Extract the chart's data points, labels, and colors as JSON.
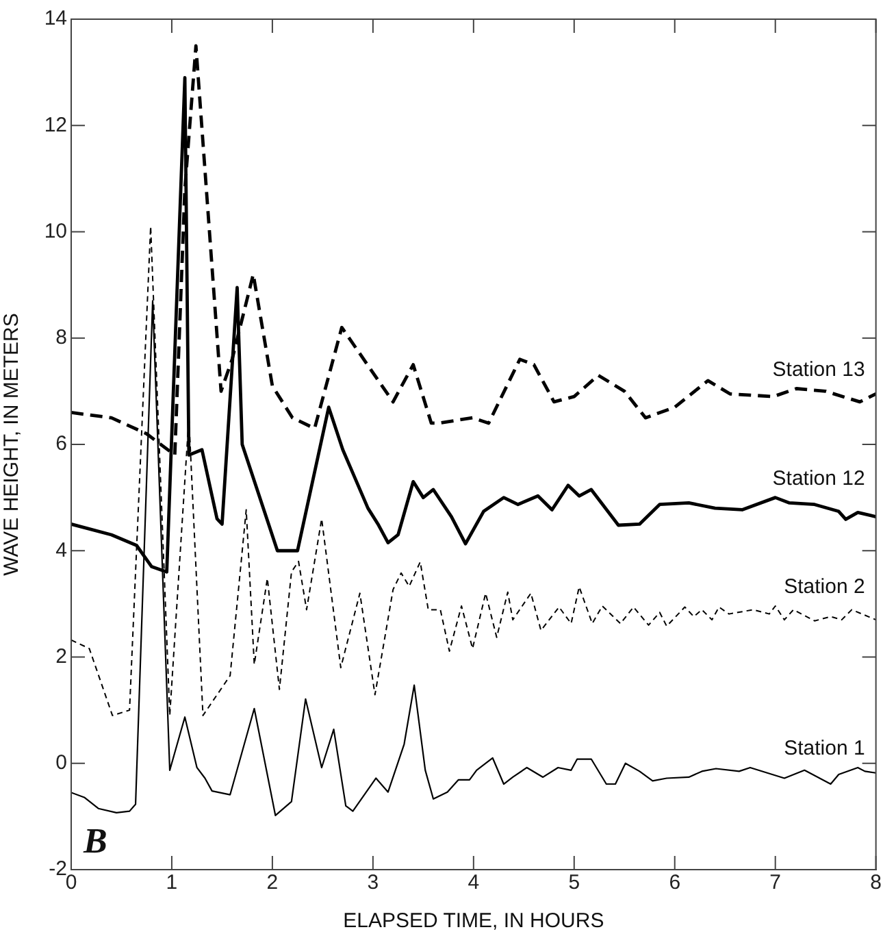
{
  "chart_data": {
    "type": "line",
    "xlabel": "ELAPSED TIME, IN HOURS",
    "ylabel": "WAVE HEIGHT, IN METERS",
    "xlim": [
      0,
      8
    ],
    "xticks": [
      0,
      1,
      2,
      3,
      4,
      5,
      6,
      7,
      8
    ],
    "ylim": [
      -2,
      14
    ],
    "yticks": [
      -2,
      0,
      2,
      4,
      6,
      8,
      10,
      12,
      14
    ],
    "grid": false,
    "legend": false,
    "marker": "none",
    "annotations": [
      "B"
    ],
    "series": [
      {
        "name": "Station 13",
        "color": "#000000",
        "line_style": "dashed",
        "x": [
          0,
          0.4,
          0.75,
          1.03,
          1.13,
          1.24,
          1.49,
          1.6,
          1.81,
          2.0,
          2.2,
          2.42,
          2.69,
          3.2,
          3.4,
          3.58,
          3.65,
          3.99,
          4.15,
          4.46,
          4.6,
          4.8,
          5.0,
          5.24,
          5.5,
          5.71,
          6.0,
          6.33,
          6.55,
          6.98,
          7.21,
          7.5,
          7.84,
          8
        ],
        "values": [
          6.6,
          6.5,
          6.2,
          5.8,
          10.8,
          13.5,
          7.0,
          7.6,
          9.2,
          7.1,
          6.5,
          6.3,
          8.2,
          6.8,
          7.5,
          6.4,
          6.4,
          6.5,
          6.4,
          7.6,
          7.5,
          6.8,
          6.9,
          7.3,
          7.0,
          6.5,
          6.7,
          7.2,
          6.95,
          6.9,
          7.05,
          7.0,
          6.8,
          6.95
        ]
      },
      {
        "name": "Station 12",
        "color": "#000000",
        "line_style": "solid",
        "x": [
          0,
          0.4,
          0.65,
          0.8,
          0.95,
          1.13,
          1.17,
          1.3,
          1.45,
          1.5,
          1.65,
          1.7,
          2.05,
          2.25,
          2.56,
          2.7,
          2.95,
          3.05,
          3.15,
          3.25,
          3.4,
          3.5,
          3.6,
          3.78,
          3.92,
          4.1,
          4.3,
          4.44,
          4.64,
          4.78,
          4.94,
          5.05,
          5.17,
          5.44,
          5.65,
          5.85,
          6.14,
          6.4,
          6.67,
          7.0,
          7.14,
          7.39,
          7.63,
          7.7,
          7.82,
          8
        ],
        "values": [
          4.5,
          4.3,
          4.1,
          3.7,
          3.6,
          12.9,
          5.8,
          5.9,
          4.6,
          4.5,
          8.95,
          6.0,
          4.0,
          4.0,
          6.7,
          5.9,
          4.8,
          4.5,
          4.15,
          4.3,
          5.3,
          5.0,
          5.15,
          4.64,
          4.13,
          4.74,
          5.0,
          4.87,
          5.03,
          4.77,
          5.23,
          5.03,
          5.15,
          4.48,
          4.5,
          4.87,
          4.9,
          4.8,
          4.77,
          5.0,
          4.9,
          4.87,
          4.74,
          4.59,
          4.72,
          4.64
        ]
      },
      {
        "name": "Station 2",
        "color": "#000000",
        "line_style": "dotted",
        "x": [
          0,
          0.18,
          0.41,
          0.58,
          0.79,
          0.98,
          1.17,
          1.31,
          1.58,
          1.74,
          1.82,
          1.95,
          2.07,
          2.19,
          2.26,
          2.34,
          2.49,
          2.68,
          2.87,
          3.02,
          3.2,
          3.28,
          3.36,
          3.47,
          3.55,
          3.67,
          3.76,
          3.88,
          3.99,
          4.12,
          4.23,
          4.34,
          4.39,
          4.57,
          4.67,
          4.85,
          4.97,
          5.05,
          5.18,
          5.28,
          5.46,
          5.59,
          5.74,
          5.85,
          5.92,
          6.1,
          6.19,
          6.27,
          6.37,
          6.44,
          6.54,
          6.78,
          6.94,
          7.0,
          7.09,
          7.18,
          7.39,
          7.55,
          7.66,
          7.76,
          8
        ],
        "values": [
          2.32,
          2.16,
          0.9,
          1.0,
          10.1,
          0.9,
          6.5,
          0.9,
          1.65,
          4.77,
          1.86,
          3.48,
          1.39,
          3.6,
          3.8,
          2.89,
          4.6,
          1.8,
          3.2,
          1.29,
          3.27,
          3.58,
          3.33,
          3.79,
          2.89,
          2.89,
          2.11,
          2.96,
          2.16,
          3.2,
          2.37,
          3.22,
          2.7,
          3.2,
          2.5,
          2.94,
          2.63,
          3.32,
          2.63,
          2.96,
          2.63,
          2.94,
          2.6,
          2.84,
          2.58,
          2.94,
          2.76,
          2.89,
          2.7,
          2.94,
          2.81,
          2.89,
          2.81,
          2.96,
          2.7,
          2.89,
          2.68,
          2.76,
          2.7,
          2.89,
          2.7
        ]
      },
      {
        "name": "Station 1",
        "color": "#000000",
        "line_style": "solid",
        "x": [
          0,
          0.13,
          0.27,
          0.45,
          0.58,
          0.64,
          0.81,
          0.98,
          1.13,
          1.25,
          1.33,
          1.4,
          1.58,
          1.82,
          2.03,
          2.19,
          2.33,
          2.49,
          2.61,
          2.73,
          2.8,
          3.03,
          3.15,
          3.31,
          3.41,
          3.52,
          3.6,
          3.74,
          3.85,
          3.96,
          4.03,
          4.19,
          4.3,
          4.39,
          4.53,
          4.69,
          4.84,
          4.97,
          5.03,
          5.17,
          5.32,
          5.41,
          5.51,
          5.65,
          5.78,
          5.92,
          6.14,
          6.27,
          6.41,
          6.64,
          6.75,
          7.09,
          7.29,
          7.55,
          7.63,
          7.82,
          7.89,
          8
        ],
        "values": [
          -0.55,
          -0.64,
          -0.85,
          -0.93,
          -0.9,
          -0.77,
          8.7,
          -0.13,
          0.87,
          -0.08,
          -0.28,
          -0.52,
          -0.59,
          1.03,
          -0.98,
          -0.72,
          1.21,
          -0.08,
          0.64,
          -0.8,
          -0.9,
          -0.28,
          -0.54,
          0.36,
          1.47,
          -0.13,
          -0.67,
          -0.54,
          -0.31,
          -0.31,
          -0.13,
          0.1,
          -0.39,
          -0.26,
          -0.08,
          -0.26,
          -0.08,
          -0.13,
          0.08,
          0.08,
          -0.39,
          -0.39,
          0,
          -0.15,
          -0.33,
          -0.28,
          -0.26,
          -0.15,
          -0.1,
          -0.15,
          -0.08,
          -0.28,
          -0.13,
          -0.39,
          -0.21,
          -0.08,
          -0.15,
          -0.18
        ]
      }
    ]
  }
}
